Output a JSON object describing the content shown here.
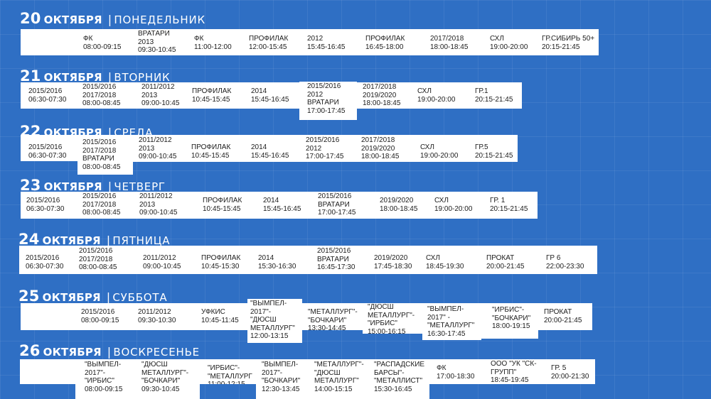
{
  "days": [
    {
      "day": "20",
      "month": "ОКТЯБРЯ",
      "separator": "|",
      "weekday": "ПОНЕДЕЛЬНИК",
      "cells": [
        "",
        "ФК\n08:00-09:15",
        "ВРАТАРИ\n2013\n09:30-10:45",
        "ФК\n11:00-12:00",
        "ПРОФИЛАК\n12:00-15:45",
        "2012\n15:45-16:45",
        "ПРОФИЛАК\n16:45-18:00",
        "2017/2018\n18:00-18:45",
        "СХЛ\n19:00-20:00",
        "ГР.СИБИРЬ 50+\n20:15-21:45"
      ]
    },
    {
      "day": "21",
      "month": "ОКТЯБРЯ",
      "separator": "|",
      "weekday": "ВТОРНИК",
      "cells": [
        "2015/2016\n06:30-07:30",
        "2015/2016\n2017/2018\n08:00-08:45",
        "2011/2012\n2013\n09:00-10:45",
        "ПРОФИЛАК\n10:45-15:45",
        "2014\n15:45-16:45",
        "2015/2016\n2012\nВРАТАРИ\n17:00-17:45",
        "2017/2018\n2019/2020\n18:00-18:45",
        "СХЛ\n19:00-20:00",
        "ГР.1\n20:15-21:45"
      ]
    },
    {
      "day": "22",
      "month": "ОКТЯБРЯ",
      "separator": "|",
      "weekday": "СРЕДА",
      "cells": [
        "2015/2016\n06:30-07:30",
        "2015/2016\n2017/2018\nВРАТАРИ\n08:00-08:45",
        "2011/2012\n2013\n09:00-10:45",
        "ПРОФИЛАК\n10:45-15:45",
        "2014\n15:45-16:45",
        "2015/2016\n2012\n17:00-17:45",
        "2017/2018\n2019/2020\n18:00-18:45",
        "СХЛ\n19:00-20:00",
        "ГР.5\n20:15-21:45"
      ]
    },
    {
      "day": "23",
      "month": "ОКТЯБРЯ",
      "separator": "|",
      "weekday": "ЧЕТВЕРГ",
      "cells": [
        "2015/2016\n06:30-07:30",
        "2015/2016\n2017/2018\n08:00-08:45",
        "2011/2012\n2013\n09:00-10:45",
        "ПРОФИЛАК\n10:45-15:45",
        "2014\n15:45-16:45",
        "2015/2016\nВРАТАРИ\n17:00-17:45",
        "2019/2020\n18:00-18:45",
        "СХЛ\n19:00-20:00",
        "ГР. 1\n20:15-21:45"
      ]
    },
    {
      "day": "24",
      "month": "ОКТЯБРЯ",
      "separator": "|",
      "weekday": "ПЯТНИЦА",
      "cells": [
        "2015/2016\n06:30-07:30",
        "2015/2016\n2017/2018\n08:00-08:45",
        "2011/2012\n09:00-10:45",
        "ПРОФИЛАК\n10:45-15:30",
        "2014\n15:30-16:30",
        "2015/2016\nВРАТАРИ\n16:45-17:30",
        "2019/2020\n17:45-18:30",
        "СХЛ\n18:45-19:30",
        "ПРОКАТ\n20:00-21:45",
        "ГР 6\n22:00-23:30"
      ]
    },
    {
      "day": "25",
      "month": "ОКТЯБРЯ",
      "separator": "|",
      "weekday": "СУББОТА",
      "cells": [
        "",
        "2015/2016\n08:00-09:15",
        "2011/2012\n09:30-10:30",
        "УФКИС\n10:45-11:45",
        "\"ВЫМПЕЛ-\n2017\"-\n\"ДЮСШ\nМЕТАЛЛУРГ\"\n12:00-13:15",
        "\"МЕТАЛЛУРГ\"-\n\"БОЧКАРИ\"\n13:30-14:45",
        "\"ДЮСШ\nМЕТАЛЛУРГ\"-\n\"ИРБИС\"\n15:00-16:15",
        "\"ВЫМПЕЛ-\n2017\" -\n\"МЕТАЛЛУРГ\"\n16:30-17:45",
        "\"ИРБИС\"-\n\"БОЧКАРИ\"\n18:00-19:15",
        "ПРОКАТ\n20:00-21:45"
      ]
    },
    {
      "day": "26",
      "month": "ОКТЯБРЯ",
      "separator": "|",
      "weekday": "ВОСКРЕСЕНЬЕ",
      "cells": [
        "",
        "\"ВЫМПЕЛ-\n2017\"-\n\"ИРБИС\"\n08:00-09:15",
        "\"ДЮСШ\nМЕТАЛЛУРГ\"-\n\"БОЧКАРИ\"\n09:30-10:45",
        "\"ИРБИС\"-\n\"МЕТАЛЛУРГ\n11:00-12:15",
        "\"ВЫМПЕЛ-\n2017\"-\n\"БОЧКАРИ\"\n12:30-13:45",
        "\"МЕТАЛЛУРГ\"-\n\"ДЮСШ\nМЕТАЛЛУРГ\"\n14:00-15:15",
        "\"РАСПАДСКИЕ\nБАРСЫ\"-\n\"МЕТАЛЛИСТ\"\n15:30-16:45",
        "ФК\n17:00-18:30",
        "ООО \"УК \"СК-\nГРУПП\"\n18:45-19:45",
        "ГР. 5\n20:00-21:30"
      ]
    }
  ]
}
